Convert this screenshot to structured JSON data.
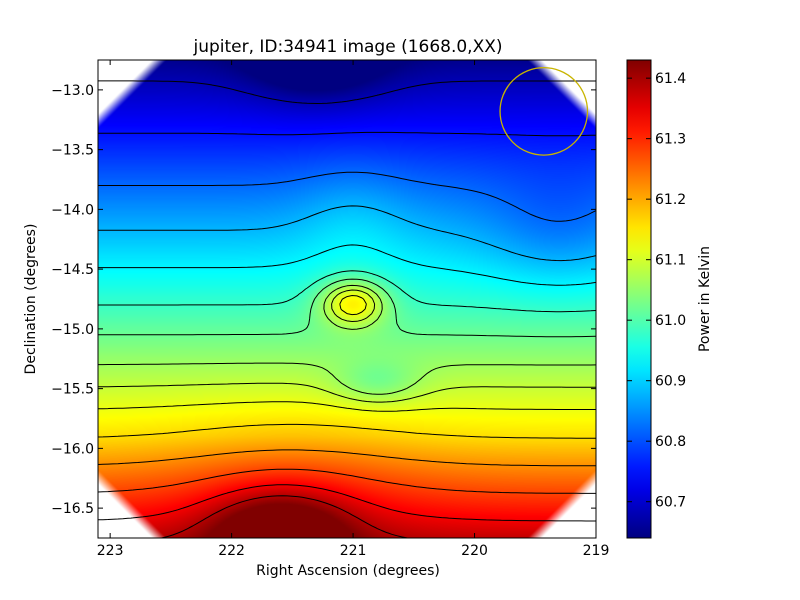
{
  "chart_data": {
    "type": "heatmap",
    "title": "jupiter, ID:34941 image (1668.0,XX)",
    "xlabel": "Right Ascension (degrees)",
    "ylabel": "Declination (degrees)",
    "x_reversed": true,
    "xlim": [
      223.1,
      219.0
    ],
    "ylim": [
      -16.75,
      -12.75
    ],
    "xticks": [
      223,
      222,
      221,
      220,
      219
    ],
    "yticks": [
      -13.0,
      -13.5,
      -14.0,
      -14.5,
      -15.0,
      -15.5,
      -16.0,
      -16.5
    ],
    "ytick_labels": [
      "−13.0",
      "−13.5",
      "−14.0",
      "−14.5",
      "−15.0",
      "−15.5",
      "−16.0",
      "−16.5"
    ],
    "colormap": "jet",
    "colorbar": {
      "label": "Power in Kelvin",
      "range": [
        60.64,
        61.43
      ],
      "ticks": [
        60.7,
        60.8,
        60.9,
        61.0,
        61.1,
        61.2,
        61.3,
        61.4
      ],
      "tick_labels": [
        "60.7",
        "60.8",
        "60.9",
        "61.0",
        "61.1",
        "61.2",
        "61.3",
        "61.4"
      ]
    },
    "field_features": [
      {
        "kind": "minimum",
        "ra": 221.3,
        "dec": -12.72,
        "value": 60.64
      },
      {
        "kind": "maximum",
        "ra": 221.6,
        "dec": -16.72,
        "value": 61.41
      },
      {
        "kind": "local_maximum",
        "ra": 221.0,
        "dec": -14.78,
        "value": 61.33
      },
      {
        "kind": "local_minimum",
        "ra": 220.85,
        "dec": -15.45,
        "value": 61.06
      }
    ],
    "contour_levels": [
      60.68,
      60.75,
      60.82,
      60.88,
      60.93,
      60.98,
      61.02,
      61.06,
      61.09,
      61.12,
      61.16,
      61.22,
      61.28,
      61.34,
      61.39
    ],
    "beam_marker": {
      "shape": "circle",
      "ra": 219.43,
      "dec": -13.18,
      "radius_deg": 0.36,
      "color": "#c8b400"
    },
    "grid": false
  }
}
